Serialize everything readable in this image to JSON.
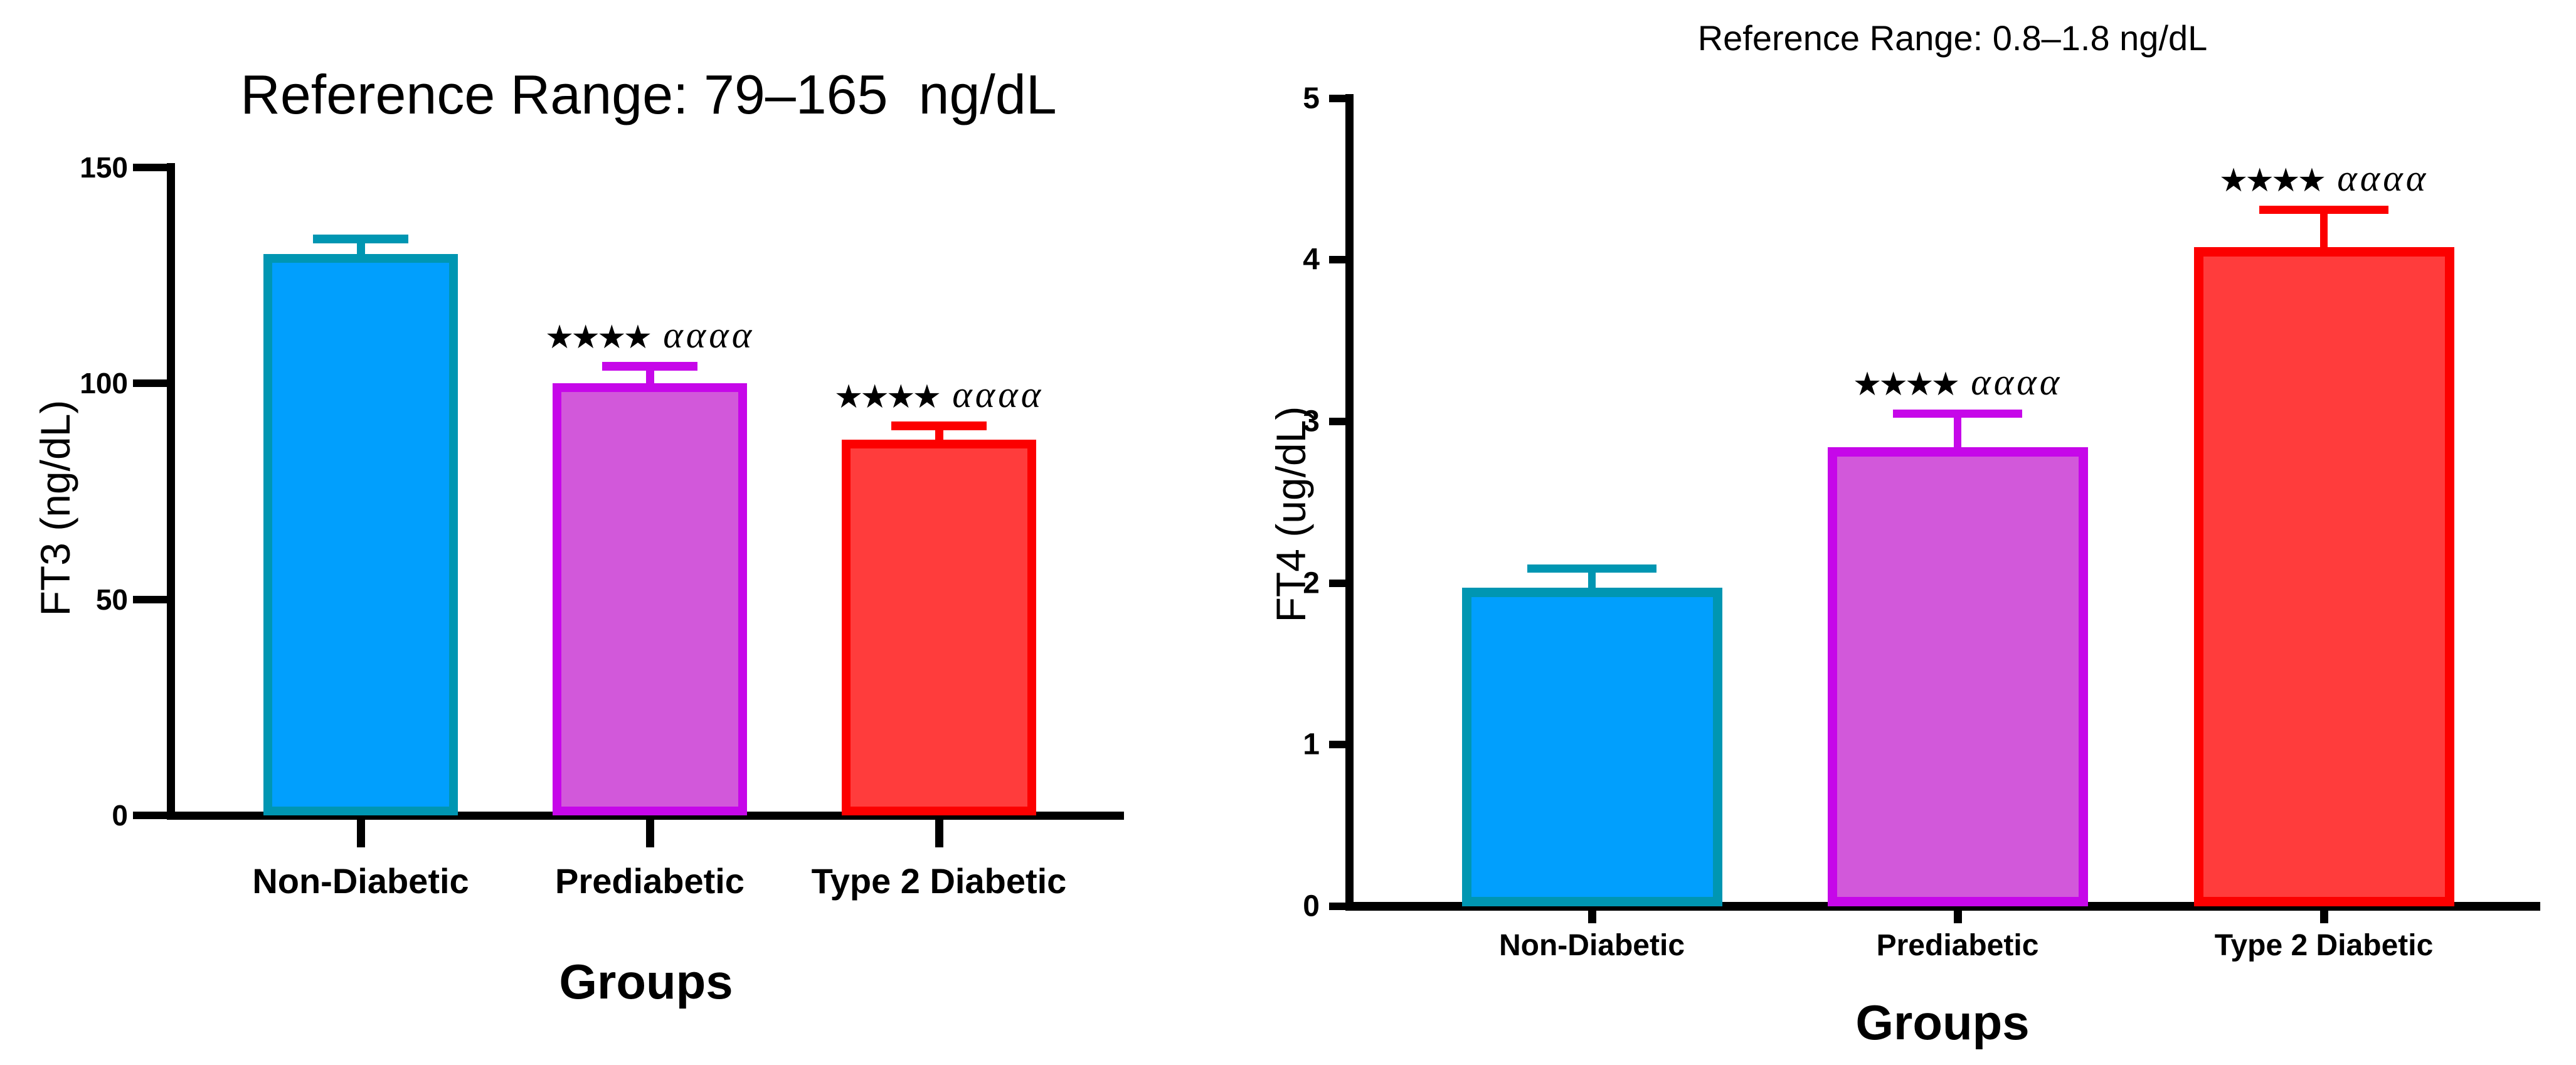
{
  "colors": {
    "background": "#FFFFFF",
    "axis": "#000000",
    "text": "#000000",
    "blue_fill": "#019FFD",
    "blue_border": "#0096B2",
    "purple_fill": "#D258DA",
    "purple_border": "#C607E9",
    "red_fill": "#FF3C3C",
    "red_border": "#FC0000"
  },
  "chart_data": [
    {
      "type": "bar",
      "title": "Reference Range: 79–165  ng/dL",
      "ylabel": "FT3 (ng/dL)",
      "xlabel": "Groups",
      "categories": [
        "Non-Diabetic",
        "Prediabetic",
        "Type 2 Diabetic"
      ],
      "values": [
        130,
        100,
        87
      ],
      "errors_plus": [
        3.4,
        4.0,
        3.2
      ],
      "ylim": [
        0,
        150
      ],
      "yticks": [
        0,
        50,
        100,
        150
      ],
      "legend": "none",
      "grid": false,
      "bar_colors": [
        {
          "name": "blue",
          "fill": "#019FFD",
          "border": "#0096B2"
        },
        {
          "name": "purple",
          "fill": "#D258DA",
          "border": "#C607E9"
        },
        {
          "name": "red",
          "fill": "#FF3C3C",
          "border": "#FC0000"
        }
      ],
      "significance": [
        null,
        {
          "stars": "★★★★",
          "alphas": "αααα"
        },
        {
          "stars": "★★★★",
          "alphas": "αααα"
        }
      ]
    },
    {
      "type": "bar",
      "title": "Reference Range: 0.8–1.8 ng/dL",
      "ylabel": "FT4 (ug/dL)",
      "xlabel": "Groups",
      "categories": [
        "Non-Diabetic",
        "Prediabetic",
        "Type 2 Diabetic"
      ],
      "values": [
        1.97,
        2.84,
        4.08
      ],
      "errors_plus": [
        0.12,
        0.21,
        0.23
      ],
      "ylim": [
        0,
        5
      ],
      "yticks": [
        0,
        1,
        2,
        3,
        4,
        5
      ],
      "legend": "none",
      "grid": false,
      "bar_colors": [
        {
          "name": "blue",
          "fill": "#019FFD",
          "border": "#0096B2"
        },
        {
          "name": "purple",
          "fill": "#D258DA",
          "border": "#C607E9"
        },
        {
          "name": "red",
          "fill": "#FF3C3C",
          "border": "#FC0000"
        }
      ],
      "significance": [
        null,
        {
          "stars": "★★★★",
          "alphas": "αααα"
        },
        {
          "stars": "★★★★",
          "alphas": "αααα"
        }
      ]
    }
  ]
}
